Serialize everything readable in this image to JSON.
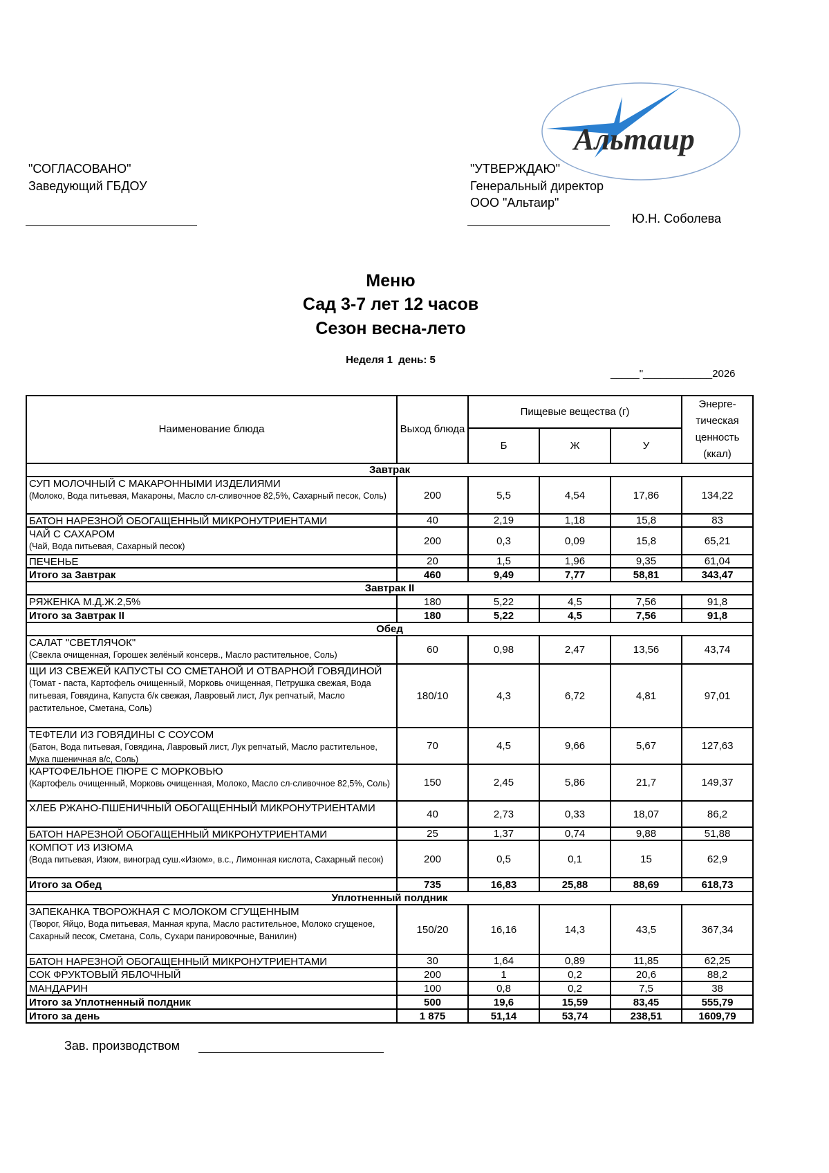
{
  "logo": {
    "text": "Альтаир",
    "star_color": "#2a7fd0",
    "ellipse_color": "#8aa8d0"
  },
  "approval_left": {
    "label": "\"СОГЛАСОВАНО\"",
    "position": "Заведующий ГБДОУ"
  },
  "approval_right": {
    "label": "\"УТВЕРЖДАЮ\"",
    "position": "Генеральный директор",
    "org": "ООО \"Альтаир\"",
    "person": "Ю.Н. Соболева"
  },
  "title": {
    "line1": "Меню",
    "line2": "Сад 3-7 лет 12 часов",
    "line3": "Сезон весна-лето"
  },
  "week_day": "Неделя 1  день: 5",
  "date_line": "_____\"____________2026",
  "headers": {
    "name": "Наименование блюда",
    "output": "Выход блюда",
    "nutrients": "Пищевые вещества (г)",
    "b": "Б",
    "zh": "Ж",
    "u": "У",
    "energy": "Энерге-тическая ценность (ккал)"
  },
  "rows": [
    {
      "type": "section",
      "name": "Завтрак"
    },
    {
      "type": "item",
      "name": "СУП МОЛОЧНЫЙ С МАКАРОННЫМИ ИЗДЕЛИЯМИ",
      "ing": "(Молоко, Вода питьевая, Макароны, Масло сл-сливочное  82,5%, Сахарный песок, Соль)",
      "out": "200",
      "b": "5,5",
      "zh": "4,54",
      "u": "17,86",
      "e": "134,22"
    },
    {
      "type": "item",
      "name": "БАТОН НАРЕЗНОЙ ОБОГАЩЕННЫЙ МИКРОНУТРИЕНТАМИ",
      "out": "40",
      "b": "2,19",
      "zh": "1,18",
      "u": "15,8",
      "e": "83"
    },
    {
      "type": "item",
      "name": "ЧАЙ С САХАРОМ",
      "ing": "(Чай, Вода питьевая, Сахарный песок)",
      "out": "200",
      "b": "0,3",
      "zh": "0,09",
      "u": "15,8",
      "e": "65,21"
    },
    {
      "type": "item",
      "name": "ПЕЧЕНЬЕ",
      "out": "20",
      "b": "1,5",
      "zh": "1,96",
      "u": "9,35",
      "e": "61,04"
    },
    {
      "type": "total",
      "name": "Итого за Завтрак",
      "out": "460",
      "b": "9,49",
      "zh": "7,77",
      "u": "58,81",
      "e": "343,47"
    },
    {
      "type": "section",
      "name": "Завтрак II"
    },
    {
      "type": "item",
      "name": "РЯЖЕНКА М.Д.Ж.2,5%",
      "out": "180",
      "b": "5,22",
      "zh": "4,5",
      "u": "7,56",
      "e": "91,8"
    },
    {
      "type": "total",
      "name": "Итого за Завтрак II",
      "out": "180",
      "b": "5,22",
      "zh": "4,5",
      "u": "7,56",
      "e": "91,8"
    },
    {
      "type": "section",
      "name": "Обед"
    },
    {
      "type": "item",
      "name": "САЛАТ \"СВЕТЛЯЧОК\"",
      "ing": "(Свекла очищенная, Горошек зелёный консерв., Масло растительное, Соль)",
      "out": "60",
      "b": "0,98",
      "zh": "2,47",
      "u": "13,56",
      "e": "43,74"
    },
    {
      "type": "item",
      "name": "ЩИ ИЗ СВЕЖЕЙ КАПУСТЫ СО СМЕТАНОЙ И ОТВАРНОЙ ГОВЯДИНОЙ",
      "ing": "(Томат - паста, Картофель очищенный, Морковь очищенная, Петрушка  свежая, Вода питьевая, Говядина, Капуста б/к свежая, Лавровый лист, Лук репчатый, Масло растительное, Сметана, Соль)",
      "out": "180/10",
      "b": "4,3",
      "zh": "6,72",
      "u": "4,81",
      "e": "97,01"
    },
    {
      "type": "item",
      "name": "ТЕФТЕЛИ ИЗ ГОВЯДИНЫ С СОУСОМ",
      "ing": "(Батон, Вода питьевая, Говядина, Лавровый лист, Лук репчатый, Масло растительное, Мука пшеничная в/с, Соль)",
      "out": "70",
      "b": "4,5",
      "zh": "9,66",
      "u": "5,67",
      "e": "127,63"
    },
    {
      "type": "item",
      "name": "КАРТОФЕЛЬНОЕ ПЮРЕ С МОРКОВЬЮ",
      "ing": "(Картофель очищенный, Морковь очищенная, Молоко, Масло сл-сливочное 82,5%, Соль)",
      "out": "150",
      "b": "2,45",
      "zh": "5,86",
      "u": "21,7",
      "e": "149,37"
    },
    {
      "type": "item",
      "name": "ХЛЕБ РЖАНО-ПШЕНИЧНЫЙ ОБОГАЩЕННЫЙ МИКРОНУТРИЕНТАМИ",
      "out": "40",
      "b": "2,73",
      "zh": "0,33",
      "u": "18,07",
      "e": "86,2"
    },
    {
      "type": "item",
      "name": "БАТОН НАРЕЗНОЙ ОБОГАЩЕННЫЙ МИКРОНУТРИЕНТАМИ",
      "out": "25",
      "b": "1,37",
      "zh": "0,74",
      "u": "9,88",
      "e": "51,88"
    },
    {
      "type": "item",
      "name": "КОМПОТ ИЗ ИЗЮМА",
      "ing": "(Вода питьевая, Изюм, виноград суш.«Изюм», в.с., Лимонная кислота, Сахарный песок)",
      "out": "200",
      "b": "0,5",
      "zh": "0,1",
      "u": "15",
      "e": "62,9"
    },
    {
      "type": "total",
      "name": "Итого за Обед",
      "out": "735",
      "b": "16,83",
      "zh": "25,88",
      "u": "88,69",
      "e": "618,73"
    },
    {
      "type": "section",
      "name": "Уплотненный полдник"
    },
    {
      "type": "item",
      "name": "ЗАПЕКАНКА ТВОРОЖНАЯ С МОЛОКОМ СГУЩЕННЫМ",
      "ing": "(Творог, Яйцо, Вода питьевая, Манная крупа, Масло растительное, Молоко сгущеное, Сахарный песок, Сметана, Соль, Сухари панировочные, Ванилин)",
      "out": "150/20",
      "b": "16,16",
      "zh": "14,3",
      "u": "43,5",
      "e": "367,34"
    },
    {
      "type": "item",
      "name": "БАТОН НАРЕЗНОЙ ОБОГАЩЕННЫЙ МИКРОНУТРИЕНТАМИ",
      "out": "30",
      "b": "1,64",
      "zh": "0,89",
      "u": "11,85",
      "e": "62,25"
    },
    {
      "type": "item",
      "name": "СОК ФРУКТОВЫЙ ЯБЛОЧНЫЙ",
      "out": "200",
      "b": "1",
      "zh": "0,2",
      "u": "20,6",
      "e": "88,2"
    },
    {
      "type": "item",
      "name": "МАНДАРИН",
      "out": "100",
      "b": "0,8",
      "zh": "0,2",
      "u": "7,5",
      "e": "38"
    },
    {
      "type": "total",
      "name": "Итого за Уплотненный полдник",
      "out": "500",
      "b": "19,6",
      "zh": "15,59",
      "u": "83,45",
      "e": "555,79"
    },
    {
      "type": "total",
      "name": "Итого за день",
      "out": "1 875",
      "b": "51,14",
      "zh": "53,74",
      "u": "238,51",
      "e": "1609,79"
    }
  ],
  "footer": {
    "label": "Зав. производством"
  }
}
